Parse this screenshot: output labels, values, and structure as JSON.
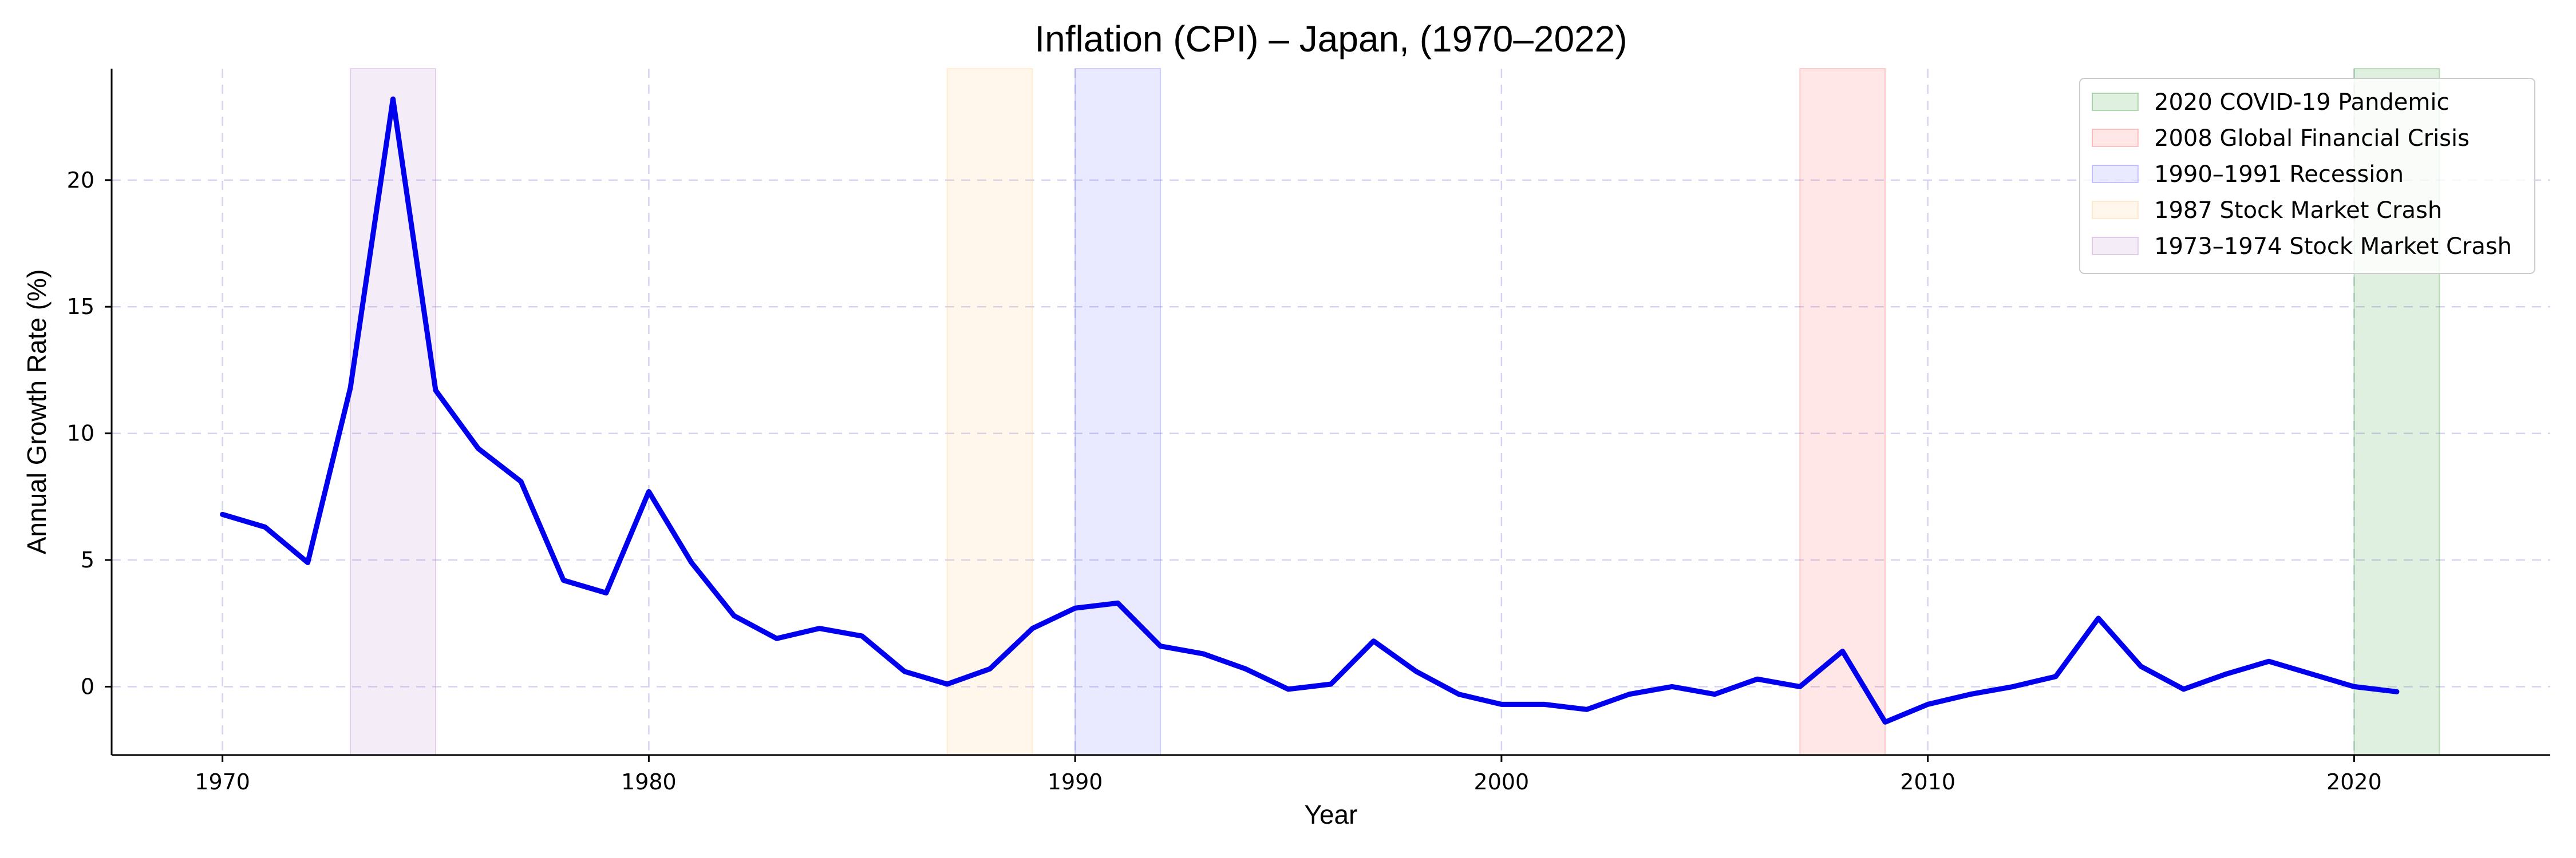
{
  "chart_data": {
    "type": "line",
    "title": "Inflation (CPI) – Japan, (1970–2022)",
    "xlabel": "Year",
    "ylabel": "Annual Growth Rate (%)",
    "xlim": [
      1967.4,
      2024.6
    ],
    "ylim": [
      -2.7,
      24.4
    ],
    "x_ticks": [
      1970,
      1980,
      1990,
      2000,
      2010,
      2020
    ],
    "y_ticks": [
      0,
      5,
      10,
      15,
      20
    ],
    "grid": true,
    "legend_position": "top-right",
    "line_color": "#0000ee",
    "series": [
      {
        "x": [
          1970,
          1971,
          1972,
          1973,
          1974,
          1975,
          1976,
          1977,
          1978,
          1979,
          1980,
          1981,
          1982,
          1983,
          1984,
          1985,
          1986,
          1987,
          1988,
          1989,
          1990,
          1991,
          1992,
          1993,
          1994,
          1995,
          1996,
          1997,
          1998,
          1999,
          2000,
          2001,
          2002,
          2003,
          2004,
          2005,
          2006,
          2007,
          2008,
          2009,
          2010,
          2011,
          2012,
          2013,
          2014,
          2015,
          2016,
          2017,
          2018,
          2019,
          2020,
          2021
        ],
        "values": [
          6.8,
          6.3,
          4.9,
          11.8,
          23.2,
          11.7,
          9.4,
          8.1,
          4.2,
          3.7,
          7.7,
          4.9,
          2.8,
          1.9,
          2.3,
          2.0,
          0.6,
          0.1,
          0.7,
          2.3,
          3.1,
          3.3,
          1.6,
          1.3,
          0.7,
          -0.1,
          0.1,
          1.8,
          0.6,
          -0.3,
          -0.7,
          -0.7,
          -0.9,
          -0.3,
          0.0,
          -0.3,
          0.3,
          0.0,
          1.4,
          -1.4,
          -0.7,
          -0.3,
          0.0,
          0.4,
          2.7,
          0.8,
          -0.1,
          0.5,
          1.0,
          0.5,
          0.0,
          -0.2
        ]
      }
    ],
    "shaded_periods": [
      {
        "name": "2020 COVID-19 Pandemic",
        "start": 2020,
        "end": 2022,
        "color": "#2e9b2e"
      },
      {
        "name": "2008 Global Financial Crisis",
        "start": 2007,
        "end": 2009,
        "color": "#ff5c5c"
      },
      {
        "name": "1990–1991 Recession",
        "start": 1990,
        "end": 1992,
        "color": "#6b6bff"
      },
      {
        "name": "1987 Stock Market Crash",
        "start": 1987,
        "end": 1989,
        "color": "#ffcc80"
      },
      {
        "name": "1973–1974 Stock Market Crash",
        "start": 1973,
        "end": 1975,
        "color": "#b87fc6"
      }
    ]
  }
}
